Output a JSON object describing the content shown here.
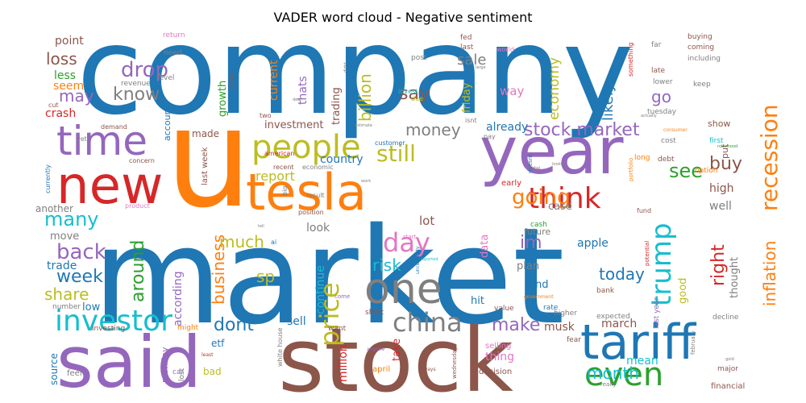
{
  "chart_data": {
    "type": "wordcloud",
    "title": "VADER word cloud - Negative sentiment",
    "palette": {
      "blue": "#1f77b4",
      "orange": "#ff7f0e",
      "green": "#2ca02c",
      "red": "#d62728",
      "purple": "#9467bd",
      "brown": "#8c564b",
      "pink": "#e377c2",
      "gray": "#7f7f7f",
      "olive": "#bcbd22",
      "cyan": "#17becf"
    },
    "words": [
      {
        "text": "company",
        "weight": 100,
        "color": "blue"
      },
      {
        "text": "market",
        "weight": 100,
        "color": "blue"
      },
      {
        "text": "u",
        "weight": 95,
        "color": "orange"
      },
      {
        "text": "stock",
        "weight": 80,
        "color": "brown"
      },
      {
        "text": "said",
        "weight": 70,
        "color": "purple"
      },
      {
        "text": "year",
        "weight": 60,
        "color": "purple"
      },
      {
        "text": "tariff",
        "weight": 50,
        "color": "blue"
      },
      {
        "text": "new",
        "weight": 50,
        "color": "red"
      },
      {
        "text": "tesla",
        "weight": 48,
        "color": "orange"
      },
      {
        "text": "one",
        "weight": 42,
        "color": "gray"
      },
      {
        "text": "time",
        "weight": 40,
        "color": "purple"
      },
      {
        "text": "people",
        "weight": 35,
        "color": "olive"
      },
      {
        "text": "investor",
        "weight": 32,
        "color": "cyan"
      },
      {
        "text": "even",
        "weight": 32,
        "color": "green"
      },
      {
        "text": "think",
        "weight": 30,
        "color": "red"
      },
      {
        "text": "trump",
        "weight": 30,
        "color": "cyan"
      },
      {
        "text": "china",
        "weight": 28,
        "color": "gray"
      },
      {
        "text": "price",
        "weight": 28,
        "color": "olive"
      },
      {
        "text": "day",
        "weight": 27,
        "color": "pink"
      },
      {
        "text": "recession",
        "weight": 25,
        "color": "orange"
      },
      {
        "text": "going",
        "weight": 25,
        "color": "orange"
      },
      {
        "text": "back",
        "weight": 24,
        "color": "purple"
      },
      {
        "text": "still",
        "weight": 24,
        "color": "olive"
      },
      {
        "text": "drop",
        "weight": 23,
        "color": "purple"
      },
      {
        "text": "many",
        "weight": 22,
        "color": "cyan"
      },
      {
        "text": "stock market",
        "weight": 22,
        "color": "purple"
      },
      {
        "text": "make",
        "weight": 22,
        "color": "purple"
      },
      {
        "text": "im",
        "weight": 22,
        "color": "purple"
      },
      {
        "text": "see",
        "weight": 22,
        "color": "green"
      },
      {
        "text": "around",
        "weight": 22,
        "color": "green"
      },
      {
        "text": "business",
        "weight": 21,
        "color": "orange"
      },
      {
        "text": "right",
        "weight": 21,
        "color": "red"
      },
      {
        "text": "week",
        "weight": 20,
        "color": "blue"
      },
      {
        "text": "know",
        "weight": 20,
        "color": "gray"
      },
      {
        "text": "dont",
        "weight": 20,
        "color": "blue"
      },
      {
        "text": "month",
        "weight": 20,
        "color": "cyan"
      },
      {
        "text": "inflation",
        "weight": 19,
        "color": "orange"
      },
      {
        "text": "buy",
        "weight": 19,
        "color": "brown"
      },
      {
        "text": "sp",
        "weight": 19,
        "color": "olive"
      },
      {
        "text": "share",
        "weight": 18,
        "color": "olive"
      },
      {
        "text": "much",
        "weight": 18,
        "color": "olive"
      },
      {
        "text": "money",
        "weight": 18,
        "color": "gray"
      },
      {
        "text": "say",
        "weight": 18,
        "color": "brown"
      },
      {
        "text": "today",
        "weight": 18,
        "color": "blue"
      },
      {
        "text": "risk",
        "weight": 18,
        "color": "cyan"
      },
      {
        "text": "billion",
        "weight": 17,
        "color": "olive"
      },
      {
        "text": "likely",
        "weight": 17,
        "color": "blue"
      },
      {
        "text": "loss",
        "weight": 17,
        "color": "brown"
      },
      {
        "text": "sale",
        "weight": 17,
        "color": "gray"
      },
      {
        "text": "go",
        "weight": 17,
        "color": "purple"
      },
      {
        "text": "economy",
        "weight": 16,
        "color": "olive"
      },
      {
        "text": "may",
        "weight": 16,
        "color": "purple"
      },
      {
        "text": "report",
        "weight": 15,
        "color": "olive"
      },
      {
        "text": "continue",
        "weight": 14,
        "color": "cyan"
      },
      {
        "text": "according",
        "weight": 14,
        "color": "purple"
      },
      {
        "text": "lot",
        "weight": 14,
        "color": "brown"
      },
      {
        "text": "apple",
        "weight": 14,
        "color": "blue"
      },
      {
        "text": "look",
        "weight": 14,
        "color": "gray"
      },
      {
        "text": "point",
        "weight": 14,
        "color": "brown"
      },
      {
        "text": "sell",
        "weight": 14,
        "color": "blue"
      },
      {
        "text": "march",
        "weight": 14,
        "color": "brown"
      },
      {
        "text": "musk",
        "weight": 14,
        "color": "brown"
      },
      {
        "text": "well",
        "weight": 14,
        "color": "gray"
      },
      {
        "text": "way",
        "weight": 14,
        "color": "pink"
      },
      {
        "text": "high",
        "weight": 14,
        "color": "brown"
      },
      {
        "text": "thing",
        "weight": 14,
        "color": "pink"
      },
      {
        "text": "trade",
        "weight": 13,
        "color": "blue"
      },
      {
        "text": "country",
        "weight": 13,
        "color": "blue"
      },
      {
        "text": "current",
        "weight": 13,
        "color": "orange"
      },
      {
        "text": "thats",
        "weight": 13,
        "color": "purple"
      },
      {
        "text": "mean",
        "weight": 13,
        "color": "cyan"
      },
      {
        "text": "less",
        "weight": 13,
        "color": "green"
      },
      {
        "text": "seem",
        "weight": 13,
        "color": "orange"
      },
      {
        "text": "growth",
        "weight": 13,
        "color": "green"
      },
      {
        "text": "already",
        "weight": 13,
        "color": "blue"
      },
      {
        "text": "plan",
        "weight": 13,
        "color": "gray"
      },
      {
        "text": "end",
        "weight": 13,
        "color": "blue"
      },
      {
        "text": "hit",
        "weight": 13,
        "color": "blue"
      },
      {
        "text": "thought",
        "weight": 13,
        "color": "gray"
      },
      {
        "text": "data",
        "weight": 13,
        "color": "pink"
      },
      {
        "text": "crash",
        "weight": 12,
        "color": "red"
      },
      {
        "text": "investment",
        "weight": 12,
        "color": "brown"
      },
      {
        "text": "trading",
        "weight": 12,
        "color": "brown"
      },
      {
        "text": "low",
        "weight": 12,
        "color": "blue"
      },
      {
        "text": "move",
        "weight": 12,
        "color": "gray"
      },
      {
        "text": "another",
        "weight": 12,
        "color": "gray"
      },
      {
        "text": "million",
        "weight": 12,
        "color": "red"
      },
      {
        "text": "take",
        "weight": 12,
        "color": "red"
      },
      {
        "text": "friday",
        "weight": 12,
        "color": "olive"
      },
      {
        "text": "case",
        "weight": 12,
        "color": "gray"
      },
      {
        "text": "made",
        "weight": 12,
        "color": "brown"
      },
      {
        "text": "source",
        "weight": 12,
        "color": "blue"
      },
      {
        "text": "good",
        "weight": 12,
        "color": "olive"
      },
      {
        "text": "monday",
        "weight": 11,
        "color": "purple"
      },
      {
        "text": "bad",
        "weight": 11,
        "color": "olive"
      },
      {
        "text": "etf",
        "weight": 11,
        "color": "blue"
      },
      {
        "text": "future",
        "weight": 11,
        "color": "gray"
      },
      {
        "text": "account",
        "weight": 11,
        "color": "blue"
      },
      {
        "text": "put",
        "weight": 11,
        "color": "brown"
      },
      {
        "text": "show",
        "weight": 10,
        "color": "brown"
      },
      {
        "text": "early",
        "weight": 10,
        "color": "red"
      },
      {
        "text": "last week",
        "weight": 10,
        "color": "brown"
      },
      {
        "text": "selling",
        "weight": 10,
        "color": "pink"
      },
      {
        "text": "decision",
        "weight": 10,
        "color": "brown"
      },
      {
        "text": "financial",
        "weight": 10,
        "color": "brown"
      },
      {
        "text": "feel",
        "weight": 10,
        "color": "gray"
      },
      {
        "text": "last year",
        "weight": 10,
        "color": "purple"
      },
      {
        "text": "april",
        "weight": 10,
        "color": "orange"
      },
      {
        "text": "cash",
        "weight": 9,
        "color": "green"
      },
      {
        "text": "fear",
        "weight": 9,
        "color": "brown"
      },
      {
        "text": "bank",
        "weight": 9,
        "color": "brown"
      },
      {
        "text": "major",
        "weight": 9,
        "color": "brown"
      },
      {
        "text": "fed",
        "weight": 9,
        "color": "brown"
      },
      {
        "text": "last",
        "weight": 9,
        "color": "brown"
      },
      {
        "text": "buying",
        "weight": 9,
        "color": "brown"
      },
      {
        "text": "coming",
        "weight": 9,
        "color": "brown"
      },
      {
        "text": "keep",
        "weight": 9,
        "color": "gray"
      },
      {
        "text": "far",
        "weight": 9,
        "color": "gray"
      },
      {
        "text": "late",
        "weight": 9,
        "color": "brown"
      },
      {
        "text": "lower",
        "weight": 9,
        "color": "gray"
      },
      {
        "text": "tuesday",
        "weight": 9,
        "color": "gray"
      },
      {
        "text": "first",
        "weight": 9,
        "color": "cyan"
      },
      {
        "text": "cost",
        "weight": 9,
        "color": "gray"
      },
      {
        "text": "option",
        "weight": 9,
        "color": "orange"
      },
      {
        "text": "long",
        "weight": 9,
        "color": "orange"
      },
      {
        "text": "debt",
        "weight": 9,
        "color": "brown"
      },
      {
        "text": "fund",
        "weight": 9,
        "color": "brown"
      },
      {
        "text": "expected",
        "weight": 9,
        "color": "gray"
      },
      {
        "text": "higher",
        "weight": 9,
        "color": "gray"
      },
      {
        "text": "rate",
        "weight": 9,
        "color": "blue"
      },
      {
        "text": "value",
        "weight": 9,
        "color": "brown"
      },
      {
        "text": "short",
        "weight": 9,
        "color": "brown"
      },
      {
        "text": "want",
        "weight": 9,
        "color": "brown"
      },
      {
        "text": "might",
        "weight": 9,
        "color": "orange"
      },
      {
        "text": "car",
        "weight": 9,
        "color": "purple"
      },
      {
        "text": "lost",
        "weight": 9,
        "color": "gray"
      },
      {
        "text": "decline",
        "weight": 9,
        "color": "gray"
      },
      {
        "text": "investing",
        "weight": 9,
        "color": "brown"
      },
      {
        "text": "number",
        "weight": 9,
        "color": "gray"
      },
      {
        "text": "need",
        "weight": 9,
        "color": "gray"
      },
      {
        "text": "level",
        "weight": 9,
        "color": "gray"
      },
      {
        "text": "return",
        "weight": 9,
        "color": "pink"
      },
      {
        "text": "revenue",
        "weight": 9,
        "color": "gray"
      },
      {
        "text": "including",
        "weight": 9,
        "color": "gray"
      },
      {
        "text": "something",
        "weight": 8,
        "color": "red"
      },
      {
        "text": "post",
        "weight": 9,
        "color": "gray"
      },
      {
        "text": "world",
        "weight": 8,
        "color": "pink"
      },
      {
        "text": "invest",
        "weight": 8,
        "color": "cyan"
      },
      {
        "text": "due",
        "weight": 8,
        "color": "olive"
      },
      {
        "text": "isnt",
        "weight": 8,
        "color": "gray"
      },
      {
        "text": "pay",
        "weight": 8,
        "color": "gray"
      },
      {
        "text": "customer",
        "weight": 8,
        "color": "blue"
      },
      {
        "text": "two",
        "weight": 8,
        "color": "brown"
      },
      {
        "text": "american",
        "weight": 8,
        "color": "red"
      },
      {
        "text": "recent",
        "weight": 8,
        "color": "brown"
      },
      {
        "text": "economic",
        "weight": 8,
        "color": "gray"
      },
      {
        "text": "big",
        "weight": 8,
        "color": "gray"
      },
      {
        "text": "result",
        "weight": 8,
        "color": "gray"
      },
      {
        "text": "position",
        "weight": 8,
        "color": "brown"
      },
      {
        "text": "ai",
        "weight": 8,
        "color": "blue"
      },
      {
        "text": "white house",
        "weight": 8,
        "color": "gray"
      },
      {
        "text": "concern",
        "weight": 8,
        "color": "brown"
      },
      {
        "text": "demand",
        "weight": 8,
        "color": "brown"
      },
      {
        "text": "yet",
        "weight": 8,
        "color": "gray"
      },
      {
        "text": "product",
        "weight": 8,
        "color": "pink"
      },
      {
        "text": "currently",
        "weight": 8,
        "color": "blue"
      },
      {
        "text": "cut",
        "weight": 8,
        "color": "brown"
      },
      {
        "text": "period",
        "weight": 7,
        "color": "brown"
      },
      {
        "text": "potential",
        "weight": 7,
        "color": "red"
      },
      {
        "text": "portfolio",
        "weight": 7,
        "color": "orange"
      },
      {
        "text": "doesnt",
        "weight": 7,
        "color": "blue"
      },
      {
        "text": "start",
        "weight": 7,
        "color": "pink"
      },
      {
        "text": "uncertainty",
        "weight": 6,
        "color": "blue"
      },
      {
        "text": "wednesday",
        "weight": 7,
        "color": "brown"
      },
      {
        "text": "come",
        "weight": 7,
        "color": "purple"
      },
      {
        "text": "really",
        "weight": 7,
        "color": "gray"
      },
      {
        "text": "government",
        "weight": 6,
        "color": "orange"
      },
      {
        "text": "february",
        "weight": 7,
        "color": "gray"
      },
      {
        "text": "always",
        "weight": 6,
        "color": "brown"
      },
      {
        "text": "anyone",
        "weight": 6,
        "color": "purple"
      },
      {
        "text": "least",
        "weight": 6,
        "color": "red"
      },
      {
        "text": "consumer",
        "weight": 6,
        "color": "orange"
      },
      {
        "text": "robinhood",
        "weight": 5,
        "color": "green"
      },
      {
        "text": "actually",
        "weight": 5,
        "color": "gray"
      },
      {
        "text": "looking",
        "weight": 5,
        "color": "gray"
      },
      {
        "text": "global",
        "weight": 5,
        "color": "gray"
      },
      {
        "text": "estimate",
        "weight": 5,
        "color": "gray"
      },
      {
        "text": "work",
        "weight": 5,
        "color": "gray"
      },
      {
        "text": "deal",
        "weight": 5,
        "color": "gray"
      },
      {
        "text": "tell",
        "weight": 5,
        "color": "gray"
      },
      {
        "text": "reported",
        "weight": 5,
        "color": "cyan"
      },
      {
        "text": "large",
        "weight": 5,
        "color": "gray"
      },
      {
        "text": "didnt",
        "weight": 5,
        "color": "gray"
      },
      {
        "text": "gold",
        "weight": 5,
        "color": "gray"
      }
    ]
  }
}
